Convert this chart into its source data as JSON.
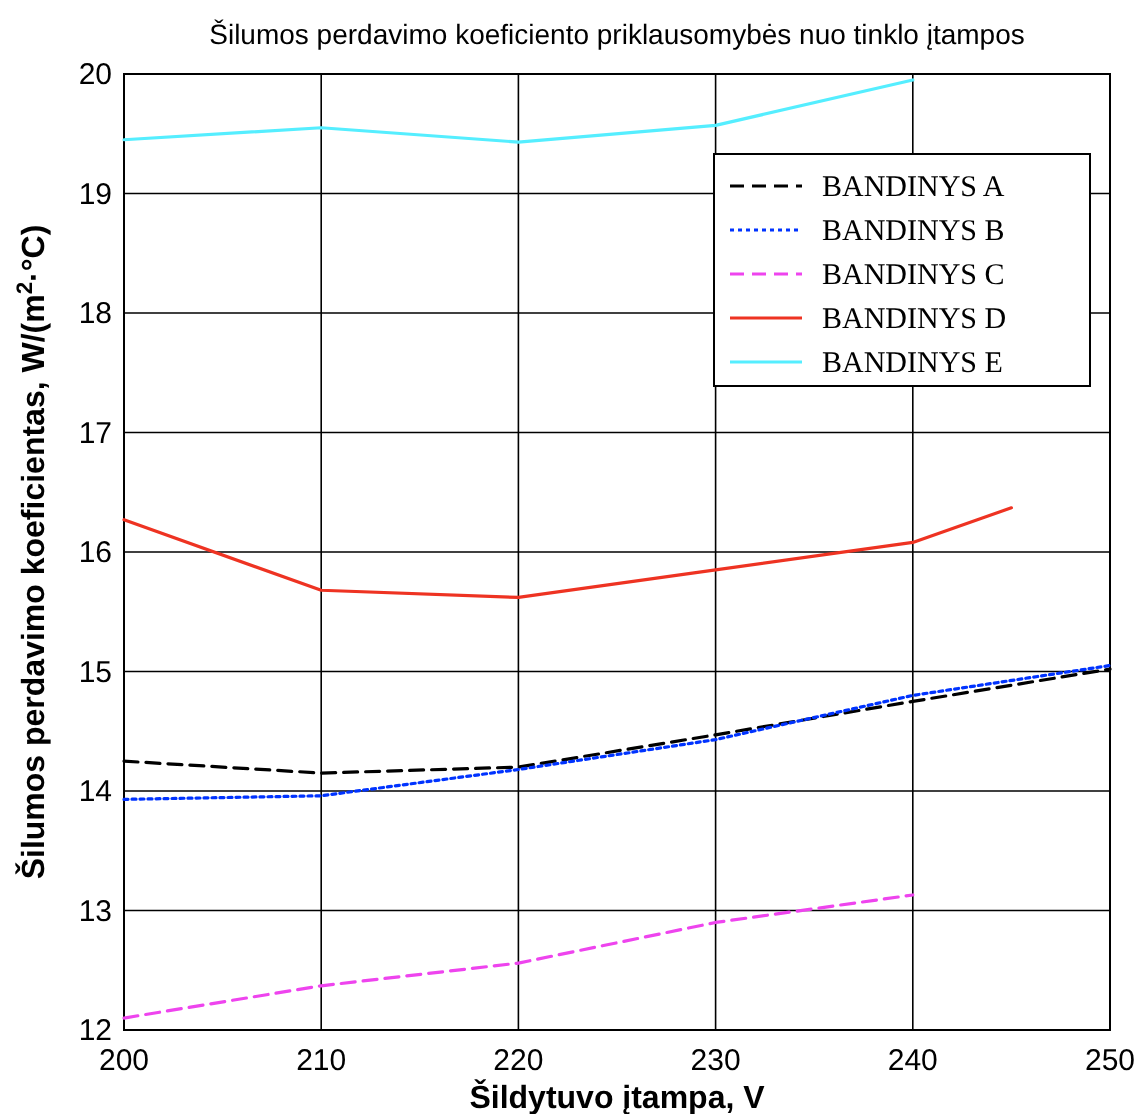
{
  "chart_data": {
    "type": "line",
    "title": "Šilumos perdavimo koeficiento priklausomybės nuo tinklo įtampos",
    "xlabel": "Šildytuvo įtampa, V",
    "ylabel": "Šilumos perdavimo koeficientas, W/(m$^{2}$·°C)",
    "xlim": [
      200,
      250
    ],
    "xticks": [
      200,
      210,
      220,
      230,
      240,
      250
    ],
    "ylim": [
      12,
      20
    ],
    "yticks": [
      12,
      13,
      14,
      15,
      16,
      17,
      18,
      19,
      20
    ],
    "grid": true,
    "legend": "top right",
    "series": [
      {
        "name": "BANDINYS A",
        "color": "#000000",
        "line_style": "dashed",
        "x": [
          200,
          210,
          220,
          230,
          240,
          250
        ],
        "values": [
          14.25,
          14.15,
          14.2,
          14.47,
          14.75,
          15.02
        ]
      },
      {
        "name": "BANDINYS B",
        "color": "#0033ff",
        "line_style": "dotted",
        "x": [
          200,
          210,
          220,
          230,
          240,
          250
        ],
        "values": [
          13.93,
          13.96,
          14.18,
          14.43,
          14.8,
          15.05
        ]
      },
      {
        "name": "BANDINYS C",
        "color": "#ee44ee",
        "line_style": "dashed",
        "x": [
          200,
          210,
          220,
          230,
          240
        ],
        "values": [
          12.1,
          12.37,
          12.56,
          12.9,
          13.13
        ]
      },
      {
        "name": "BANDINYS D",
        "color": "#ee3322",
        "line_style": "solid",
        "x": [
          200,
          210,
          220,
          230,
          240,
          245
        ],
        "values": [
          16.27,
          15.68,
          15.62,
          15.85,
          16.08,
          16.37
        ]
      },
      {
        "name": "BANDINYS E",
        "color": "#55eeff",
        "line_style": "solid",
        "x": [
          200,
          210,
          220,
          230,
          240
        ],
        "values": [
          19.45,
          19.55,
          19.43,
          19.57,
          19.95
        ]
      }
    ]
  }
}
